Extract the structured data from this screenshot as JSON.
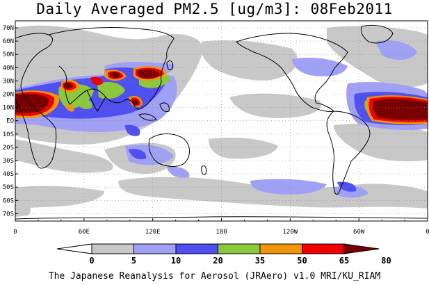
{
  "title": "Daily Averaged PM2.5 [ug/m3]: 08Feb2011",
  "footer": "The Japanese Reanalysis for Aerosol (JRAero) v1.0 MRI/KU_RIAM",
  "lat_labels": [
    "70N",
    "60N",
    "50N",
    "40N",
    "30N",
    "20N",
    "10N",
    "EQ",
    "10S",
    "20S",
    "30S",
    "40S",
    "50S",
    "60S",
    "70S"
  ],
  "lon_labels": [
    "0",
    "60E",
    "120E",
    "180",
    "120W",
    "60W",
    "0"
  ],
  "colorbar": {
    "levels": [
      "0",
      "5",
      "10",
      "20",
      "35",
      "50",
      "65",
      "80"
    ],
    "colors": [
      "#ffffff",
      "#c8c8c8",
      "#a0a0f5",
      "#5050f0",
      "#8cc83c",
      "#f0960a",
      "#f00000",
      "#780000"
    ]
  },
  "colors": {
    "land_outline": "#000000",
    "background": "#ffffff"
  }
}
